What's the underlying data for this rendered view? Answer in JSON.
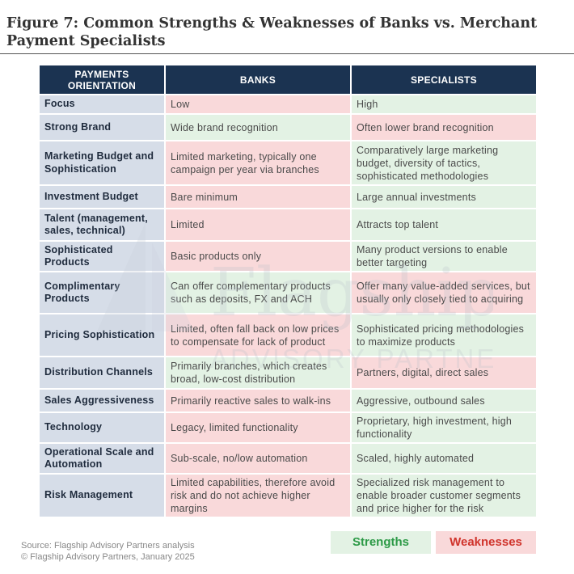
{
  "title": "Figure 7: Common Strengths & Weaknesses of Banks vs. Merchant Payment Specialists",
  "headers": {
    "orientation": "PAYMENTS ORIENTATION",
    "banks": "BANKS",
    "specialists": "SPECIALISTS"
  },
  "rows": [
    {
      "label": "Focus",
      "banks": "Low",
      "specialists": "High"
    },
    {
      "label": "Strong Brand",
      "banks": "Wide brand recognition",
      "specialists": "Often lower brand recognition"
    },
    {
      "label": "Marketing Budget and Sophistication",
      "banks": "Limited marketing, typically one campaign per year via branches",
      "specialists": "Comparatively large marketing budget, diversity of tactics, sophisticated methodologies"
    },
    {
      "label": "Investment Budget",
      "banks": "Bare minimum",
      "specialists": "Large annual investments"
    },
    {
      "label": "Talent (management, sales, technical)",
      "banks": "Limited",
      "specialists": "Attracts top talent"
    },
    {
      "label": "Sophisticated Products",
      "banks": "Basic products only",
      "specialists": "Many product versions to enable better targeting"
    },
    {
      "label": "Complimentary Products",
      "banks": "Can offer complementary products such as deposits, FX and ACH",
      "specialists": "Offer many value-added services, but usually only closely tied to acquiring"
    },
    {
      "label": "Pricing Sophistication",
      "banks": "Limited, often fall back on low prices to compensate for lack of product",
      "specialists": "Sophisticated pricing methodologies to maximize products"
    },
    {
      "label": "Distribution Channels",
      "banks": "Primarily branches, which creates broad, low-cost distribution",
      "specialists": "Partners, digital, direct sales"
    },
    {
      "label": "Sales Aggressiveness",
      "banks": "Primarily reactive sales to walk-ins",
      "specialists": "Aggressive, outbound sales"
    },
    {
      "label": "Technology",
      "banks": "Legacy, limited functionality",
      "specialists": "Proprietary, high investment, high functionality"
    },
    {
      "label": "Operational Scale and Automation",
      "banks": "Sub-scale, no/low automation",
      "specialists": "Scaled, highly automated"
    },
    {
      "label": "Risk Management",
      "banks": "Limited capabilities, therefore avoid risk and do not achieve higher margins",
      "specialists": "Specialized risk management to enable broader customer segments and price higher for the risk"
    }
  ],
  "footer": {
    "source": "Source: Flagship Advisory Partners analysis",
    "copyright": "© Flagship Advisory Partners, January 2025"
  },
  "legend": {
    "strengths": "Strengths",
    "weaknesses": "Weaknesses"
  },
  "watermark": {
    "name": "Flagship",
    "tagline": "ADVISORY PARTNERS"
  },
  "colors": {
    "header": "#1b3351",
    "label_cell": "#d6dde8",
    "strength": "#e3f2e4",
    "weakness": "#f9d9da",
    "strength_text": "#2d9a47",
    "weakness_text": "#d0342c"
  }
}
